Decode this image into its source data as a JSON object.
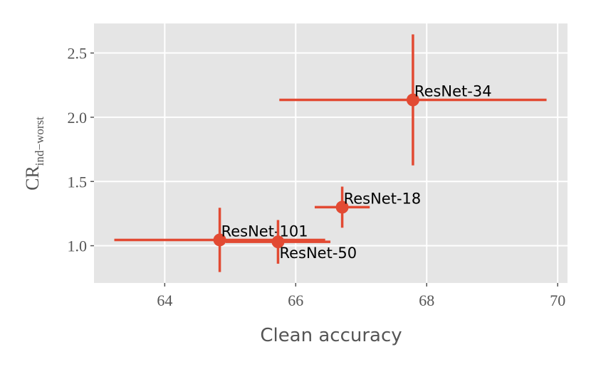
{
  "chart_data": {
    "type": "errorbar-scatter",
    "x_label": "Clean accuracy",
    "y_label": "CR",
    "y_label_subscript": "ind−worst",
    "color": "#E24A33",
    "grid": true,
    "xlim": [
      62.92,
      70.15
    ],
    "xticks": [
      64,
      66,
      68,
      70
    ],
    "ylim": [
      0.71,
      2.73
    ],
    "yticks": [
      {
        "value": 1.0,
        "label": "1.0"
      },
      {
        "value": 1.5,
        "label": "1.5"
      },
      {
        "value": 2.0,
        "label": "2.0"
      },
      {
        "value": 2.5,
        "label": "2.5"
      }
    ],
    "points": [
      {
        "label": "ResNet-34",
        "x": 67.79,
        "y": 2.135,
        "xerr": 2.04,
        "yerr": 0.51
      },
      {
        "label": "ResNet-18",
        "x": 66.71,
        "y": 1.3,
        "xerr": 0.42,
        "yerr": 0.16
      },
      {
        "label": "ResNet-101",
        "x": 64.84,
        "y": 1.045,
        "xerr": 1.61,
        "yerr": 0.25
      },
      {
        "label": "ResNet-50",
        "x": 65.73,
        "y": 1.03,
        "xerr": 0.8,
        "yerr": 0.17
      }
    ]
  }
}
